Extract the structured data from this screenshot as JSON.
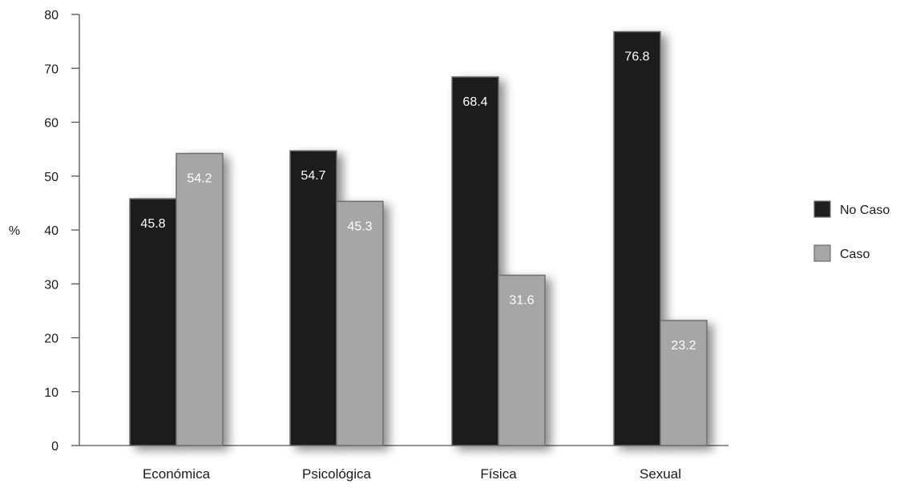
{
  "chart_data": {
    "type": "bar",
    "categories": [
      "Económica",
      "Psicológica",
      "Física",
      "Sexual"
    ],
    "series": [
      {
        "name": "No Caso",
        "values": [
          45.8,
          54.7,
          68.4,
          76.8
        ],
        "color": "#1f1f1f"
      },
      {
        "name": "Caso",
        "values": [
          54.2,
          45.3,
          31.6,
          23.2
        ],
        "color": "#a6a6a6"
      }
    ],
    "ylabel": "%",
    "ylim": [
      0,
      80
    ],
    "yticks": [
      0,
      10,
      20,
      30,
      40,
      50,
      60,
      70,
      80
    ],
    "grid": false,
    "legend_position": "right",
    "data_labels": true
  }
}
